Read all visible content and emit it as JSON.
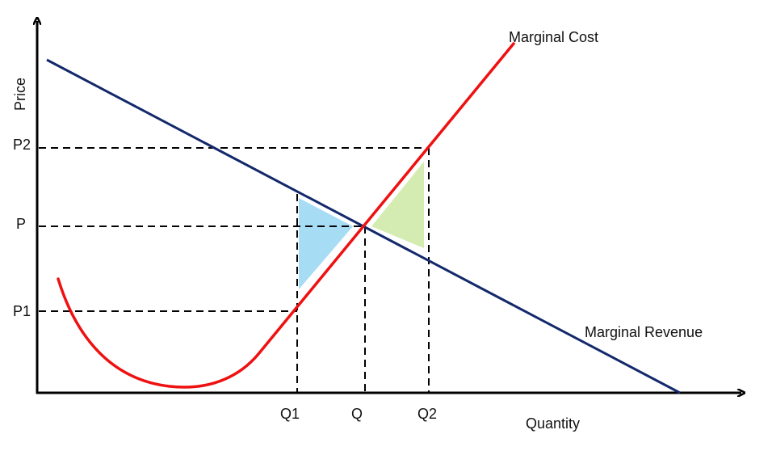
{
  "diagram": {
    "axes": {
      "y_label": "Price",
      "x_label": "Quantity"
    },
    "curves": {
      "marginal_cost": {
        "label": "Marginal Cost",
        "color": "#ee1111"
      },
      "marginal_revenue": {
        "label": "Marginal Revenue",
        "color": "#13296b"
      }
    },
    "price_levels": [
      "P2",
      "P",
      "P1"
    ],
    "quantity_levels": [
      "Q1",
      "Q",
      "Q2"
    ],
    "regions": {
      "left_triangle_color": "#a7dcf5",
      "right_triangle_color": "#d4ecb1"
    }
  }
}
